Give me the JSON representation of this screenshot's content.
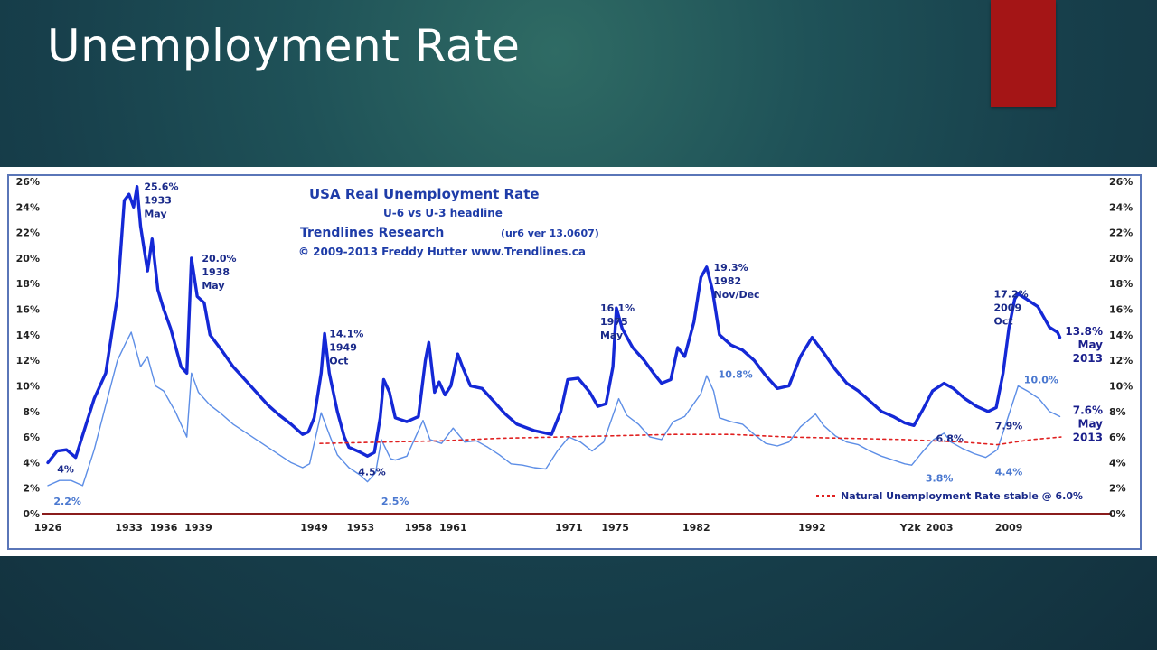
{
  "slide": {
    "title": "Unemployment Rate",
    "accent_color": "#a41516"
  },
  "chart_data": {
    "type": "line",
    "title": "USA Real Unemployment Rate",
    "subtitle": "U-6 vs U-3 headline",
    "credit_line1": "Trendlines Research",
    "credit_version": "(ur6 ver 13.0607)",
    "credit_line2": "© 2009-2013 Freddy Hutter www.Trendlines.ca",
    "xmin": 1926,
    "xmax": 2015,
    "ylim": [
      0,
      26
    ],
    "grid": false,
    "yticks": [
      "0%",
      "2%",
      "4%",
      "6%",
      "8%",
      "10%",
      "12%",
      "14%",
      "16%",
      "18%",
      "20%",
      "22%",
      "24%",
      "26%"
    ],
    "xticks": [
      {
        "x": 1926,
        "label": "1926"
      },
      {
        "x": 1933,
        "label": "1933"
      },
      {
        "x": 1936,
        "label": "1936"
      },
      {
        "x": 1939,
        "label": "1939"
      },
      {
        "x": 1949,
        "label": "1949"
      },
      {
        "x": 1953,
        "label": "1953"
      },
      {
        "x": 1958,
        "label": "1958"
      },
      {
        "x": 1961,
        "label": "1961"
      },
      {
        "x": 1971,
        "label": "1971"
      },
      {
        "x": 1975,
        "label": "1975"
      },
      {
        "x": 1982,
        "label": "1982"
      },
      {
        "x": 1992,
        "label": "1992"
      },
      {
        "x": 2000.5,
        "label": "Y2k"
      },
      {
        "x": 2003,
        "label": "2003"
      },
      {
        "x": 2009,
        "label": "2009"
      }
    ],
    "series": [
      {
        "name": "U-6",
        "color": "#1428d6",
        "points": [
          [
            1926,
            4.0
          ],
          [
            1926.8,
            4.9
          ],
          [
            1927.6,
            5.0
          ],
          [
            1928.4,
            4.4
          ],
          [
            1929.3,
            7.0
          ],
          [
            1930,
            9.0
          ],
          [
            1931,
            11.0
          ],
          [
            1932,
            17.0
          ],
          [
            1932.6,
            24.5
          ],
          [
            1933,
            25.0
          ],
          [
            1933.4,
            24.0
          ],
          [
            1933.7,
            25.6
          ],
          [
            1934,
            22.5
          ],
          [
            1934.6,
            19.0
          ],
          [
            1935,
            21.5
          ],
          [
            1935.5,
            17.5
          ],
          [
            1936,
            16.0
          ],
          [
            1936.6,
            14.5
          ],
          [
            1937.5,
            11.5
          ],
          [
            1938,
            11.0
          ],
          [
            1938.4,
            20.0
          ],
          [
            1938.9,
            17.0
          ],
          [
            1939.5,
            16.5
          ],
          [
            1940,
            14.0
          ],
          [
            1941,
            12.8
          ],
          [
            1942,
            11.5
          ],
          [
            1943,
            10.5
          ],
          [
            1944,
            9.5
          ],
          [
            1945,
            8.5
          ],
          [
            1946,
            7.7
          ],
          [
            1947,
            7.0
          ],
          [
            1948,
            6.2
          ],
          [
            1948.5,
            6.4
          ],
          [
            1949,
            7.5
          ],
          [
            1949.6,
            11.0
          ],
          [
            1949.9,
            14.1
          ],
          [
            1950.3,
            11.0
          ],
          [
            1951,
            8.0
          ],
          [
            1951.6,
            6.0
          ],
          [
            1952,
            5.2
          ],
          [
            1953,
            4.8
          ],
          [
            1953.6,
            4.5
          ],
          [
            1954.2,
            4.8
          ],
          [
            1954.7,
            7.5
          ],
          [
            1955,
            10.5
          ],
          [
            1955.5,
            9.5
          ],
          [
            1956,
            7.5
          ],
          [
            1957,
            7.2
          ],
          [
            1958,
            7.6
          ],
          [
            1958.6,
            12.0
          ],
          [
            1958.9,
            13.4
          ],
          [
            1959.4,
            9.5
          ],
          [
            1959.8,
            10.3
          ],
          [
            1960.3,
            9.3
          ],
          [
            1960.8,
            10.0
          ],
          [
            1961.4,
            12.5
          ],
          [
            1961.8,
            11.5
          ],
          [
            1962.5,
            10.0
          ],
          [
            1963.5,
            9.8
          ],
          [
            1964.5,
            8.8
          ],
          [
            1965.5,
            7.8
          ],
          [
            1966.5,
            7.0
          ],
          [
            1968,
            6.5
          ],
          [
            1969.5,
            6.2
          ],
          [
            1970.3,
            8.0
          ],
          [
            1970.9,
            10.5
          ],
          [
            1971.8,
            10.6
          ],
          [
            1972.8,
            9.5
          ],
          [
            1973.5,
            8.4
          ],
          [
            1974.2,
            8.6
          ],
          [
            1974.8,
            11.5
          ],
          [
            1975.1,
            16.1
          ],
          [
            1975.6,
            14.5
          ],
          [
            1976.5,
            13.0
          ],
          [
            1977.5,
            12.0
          ],
          [
            1978.3,
            11.0
          ],
          [
            1979,
            10.2
          ],
          [
            1979.8,
            10.5
          ],
          [
            1980.4,
            13.0
          ],
          [
            1981,
            12.3
          ],
          [
            1981.8,
            15.0
          ],
          [
            1982.4,
            18.5
          ],
          [
            1982.9,
            19.3
          ],
          [
            1983.4,
            17.5
          ],
          [
            1984,
            14.0
          ],
          [
            1985,
            13.2
          ],
          [
            1986,
            12.8
          ],
          [
            1987,
            12.0
          ],
          [
            1988,
            10.8
          ],
          [
            1989,
            9.8
          ],
          [
            1990,
            10.0
          ],
          [
            1991,
            12.3
          ],
          [
            1992,
            13.8
          ],
          [
            1993,
            12.6
          ],
          [
            1994,
            11.3
          ],
          [
            1995,
            10.2
          ],
          [
            1996,
            9.6
          ],
          [
            1997,
            8.8
          ],
          [
            1998,
            8.0
          ],
          [
            1999,
            7.6
          ],
          [
            2000,
            7.1
          ],
          [
            2000.8,
            6.9
          ],
          [
            2001.6,
            8.2
          ],
          [
            2002.4,
            9.6
          ],
          [
            2003.4,
            10.2
          ],
          [
            2004.2,
            9.8
          ],
          [
            2005.2,
            9.0
          ],
          [
            2006.2,
            8.4
          ],
          [
            2007.2,
            8.0
          ],
          [
            2007.9,
            8.3
          ],
          [
            2008.5,
            11.0
          ],
          [
            2009,
            14.5
          ],
          [
            2009.5,
            16.8
          ],
          [
            2009.8,
            17.2
          ],
          [
            2010.5,
            16.8
          ],
          [
            2011.5,
            16.2
          ],
          [
            2012.5,
            14.6
          ],
          [
            2013.2,
            14.2
          ],
          [
            2013.4,
            13.8
          ]
        ]
      },
      {
        "name": "U-3",
        "color": "#5d8ee6",
        "points": [
          [
            1926,
            2.2
          ],
          [
            1927,
            2.6
          ],
          [
            1928,
            2.6
          ],
          [
            1929,
            2.2
          ],
          [
            1930,
            5.0
          ],
          [
            1931,
            8.5
          ],
          [
            1932,
            12.0
          ],
          [
            1932.8,
            13.5
          ],
          [
            1933.2,
            14.2
          ],
          [
            1934,
            11.5
          ],
          [
            1934.6,
            12.3
          ],
          [
            1935.3,
            10.0
          ],
          [
            1936,
            9.6
          ],
          [
            1937,
            8.0
          ],
          [
            1938,
            6.0
          ],
          [
            1938.4,
            11.0
          ],
          [
            1939,
            9.5
          ],
          [
            1940,
            8.5
          ],
          [
            1941,
            7.8
          ],
          [
            1942,
            7.0
          ],
          [
            1943,
            6.4
          ],
          [
            1944,
            5.8
          ],
          [
            1945,
            5.2
          ],
          [
            1946,
            4.6
          ],
          [
            1947,
            4.0
          ],
          [
            1948,
            3.6
          ],
          [
            1948.6,
            3.9
          ],
          [
            1949.6,
            7.9
          ],
          [
            1950.3,
            6.2
          ],
          [
            1951,
            4.6
          ],
          [
            1952,
            3.6
          ],
          [
            1953,
            3.0
          ],
          [
            1953.6,
            2.5
          ],
          [
            1954.3,
            3.2
          ],
          [
            1954.8,
            5.8
          ],
          [
            1955.6,
            4.3
          ],
          [
            1956,
            4.2
          ],
          [
            1957,
            4.5
          ],
          [
            1958.4,
            7.3
          ],
          [
            1959,
            5.8
          ],
          [
            1960,
            5.5
          ],
          [
            1961,
            6.7
          ],
          [
            1962,
            5.6
          ],
          [
            1963,
            5.7
          ],
          [
            1964,
            5.2
          ],
          [
            1965,
            4.6
          ],
          [
            1966,
            3.9
          ],
          [
            1967,
            3.8
          ],
          [
            1968,
            3.6
          ],
          [
            1969,
            3.5
          ],
          [
            1970,
            4.9
          ],
          [
            1971,
            6.0
          ],
          [
            1972,
            5.6
          ],
          [
            1973,
            4.9
          ],
          [
            1974,
            5.6
          ],
          [
            1975.3,
            9.0
          ],
          [
            1976,
            7.7
          ],
          [
            1977,
            7.0
          ],
          [
            1978,
            6.0
          ],
          [
            1979,
            5.8
          ],
          [
            1980,
            7.2
          ],
          [
            1981,
            7.6
          ],
          [
            1982.4,
            9.4
          ],
          [
            1982.9,
            10.8
          ],
          [
            1983.5,
            9.6
          ],
          [
            1984,
            7.5
          ],
          [
            1985,
            7.2
          ],
          [
            1986,
            7.0
          ],
          [
            1987,
            6.2
          ],
          [
            1988,
            5.5
          ],
          [
            1989,
            5.3
          ],
          [
            1990,
            5.6
          ],
          [
            1991,
            6.8
          ],
          [
            1992.3,
            7.8
          ],
          [
            1993,
            6.9
          ],
          [
            1994,
            6.1
          ],
          [
            1995,
            5.6
          ],
          [
            1996,
            5.4
          ],
          [
            1997,
            4.9
          ],
          [
            1998,
            4.5
          ],
          [
            1999,
            4.2
          ],
          [
            2000,
            3.9
          ],
          [
            2000.6,
            3.8
          ],
          [
            2001.6,
            4.9
          ],
          [
            2002.5,
            5.8
          ],
          [
            2003.4,
            6.3
          ],
          [
            2004,
            5.6
          ],
          [
            2005,
            5.1
          ],
          [
            2006,
            4.7
          ],
          [
            2007,
            4.4
          ],
          [
            2008,
            5.0
          ],
          [
            2008.8,
            7.2
          ],
          [
            2009.8,
            10.0
          ],
          [
            2010.6,
            9.6
          ],
          [
            2011.6,
            9.0
          ],
          [
            2012.5,
            8.0
          ],
          [
            2013.4,
            7.6
          ]
        ]
      },
      {
        "name": "Natural Unemployment Rate stable @ 6.0%",
        "color": "#e02020",
        "dashed": true,
        "points": [
          [
            1949.5,
            5.5
          ],
          [
            1955,
            5.6
          ],
          [
            1960,
            5.7
          ],
          [
            1965,
            5.9
          ],
          [
            1970,
            6.0
          ],
          [
            1975,
            6.1
          ],
          [
            1980,
            6.2
          ],
          [
            1985,
            6.2
          ],
          [
            1990,
            6.0
          ],
          [
            1995,
            5.9
          ],
          [
            2000,
            5.8
          ],
          [
            2005,
            5.6
          ],
          [
            2008,
            5.4
          ],
          [
            2011,
            5.8
          ],
          [
            2013.5,
            6.0
          ]
        ]
      }
    ],
    "annotations": [
      {
        "x": 1934.3,
        "y": 25.6,
        "lines": [
          "25.6%",
          "1933",
          "May"
        ],
        "color": "#1a2a8a"
      },
      {
        "x": 1939.3,
        "y": 20.0,
        "lines": [
          "20.0%",
          "1938",
          "May"
        ],
        "color": "#1a2a8a"
      },
      {
        "x": 1950.3,
        "y": 14.1,
        "lines": [
          "14.1%",
          "1949",
          "Oct"
        ],
        "color": "#1a2a8a"
      },
      {
        "x": 1973.7,
        "y": 16.1,
        "lines": [
          "16.1%",
          "1975",
          "May"
        ],
        "color": "#1a2a8a"
      },
      {
        "x": 1983.5,
        "y": 19.3,
        "lines": [
          "19.3%",
          "1982",
          "Nov/Dec"
        ],
        "color": "#1a2a8a"
      },
      {
        "x": 2007.7,
        "y": 17.2,
        "lines": [
          "17.2%",
          "2009",
          "Oct"
        ],
        "color": "#1a2a8a"
      },
      {
        "x": 1926.8,
        "y": 3.5,
        "lines": [
          "4%"
        ],
        "color": "#1a2a8a"
      },
      {
        "x": 1926.5,
        "y": 1.0,
        "lines": [
          "2.2%"
        ],
        "color": "#4a78d0"
      },
      {
        "x": 1952.8,
        "y": 3.3,
        "lines": [
          "4.5%"
        ],
        "color": "#1a2a8a"
      },
      {
        "x": 1954.8,
        "y": 1.0,
        "lines": [
          "2.5%"
        ],
        "color": "#4a78d0"
      },
      {
        "x": 1983.9,
        "y": 10.9,
        "lines": [
          "10.8%"
        ],
        "color": "#4a78d0"
      },
      {
        "x": 2002.7,
        "y": 5.9,
        "lines": [
          "6.8%"
        ],
        "color": "#1a2a8a"
      },
      {
        "x": 2001.8,
        "y": 2.8,
        "lines": [
          "3.8%"
        ],
        "color": "#4a78d0"
      },
      {
        "x": 2007.8,
        "y": 6.9,
        "lines": [
          "7.9%"
        ],
        "color": "#1a2a8a"
      },
      {
        "x": 2007.8,
        "y": 3.3,
        "lines": [
          "4.4%"
        ],
        "color": "#4a78d0"
      },
      {
        "x": 2010.3,
        "y": 10.5,
        "lines": [
          "10.0%"
        ],
        "color": "#4a78d0"
      }
    ],
    "end_labels": [
      {
        "y": 14.0,
        "lines": [
          "13.8%",
          "May",
          "2013"
        ]
      },
      {
        "y": 7.8,
        "lines": [
          "7.6%",
          "May",
          "2013"
        ]
      }
    ],
    "legend": {
      "label": "Natural Unemployment Rate stable @ 6.0%",
      "placement": "bottom-right"
    }
  }
}
